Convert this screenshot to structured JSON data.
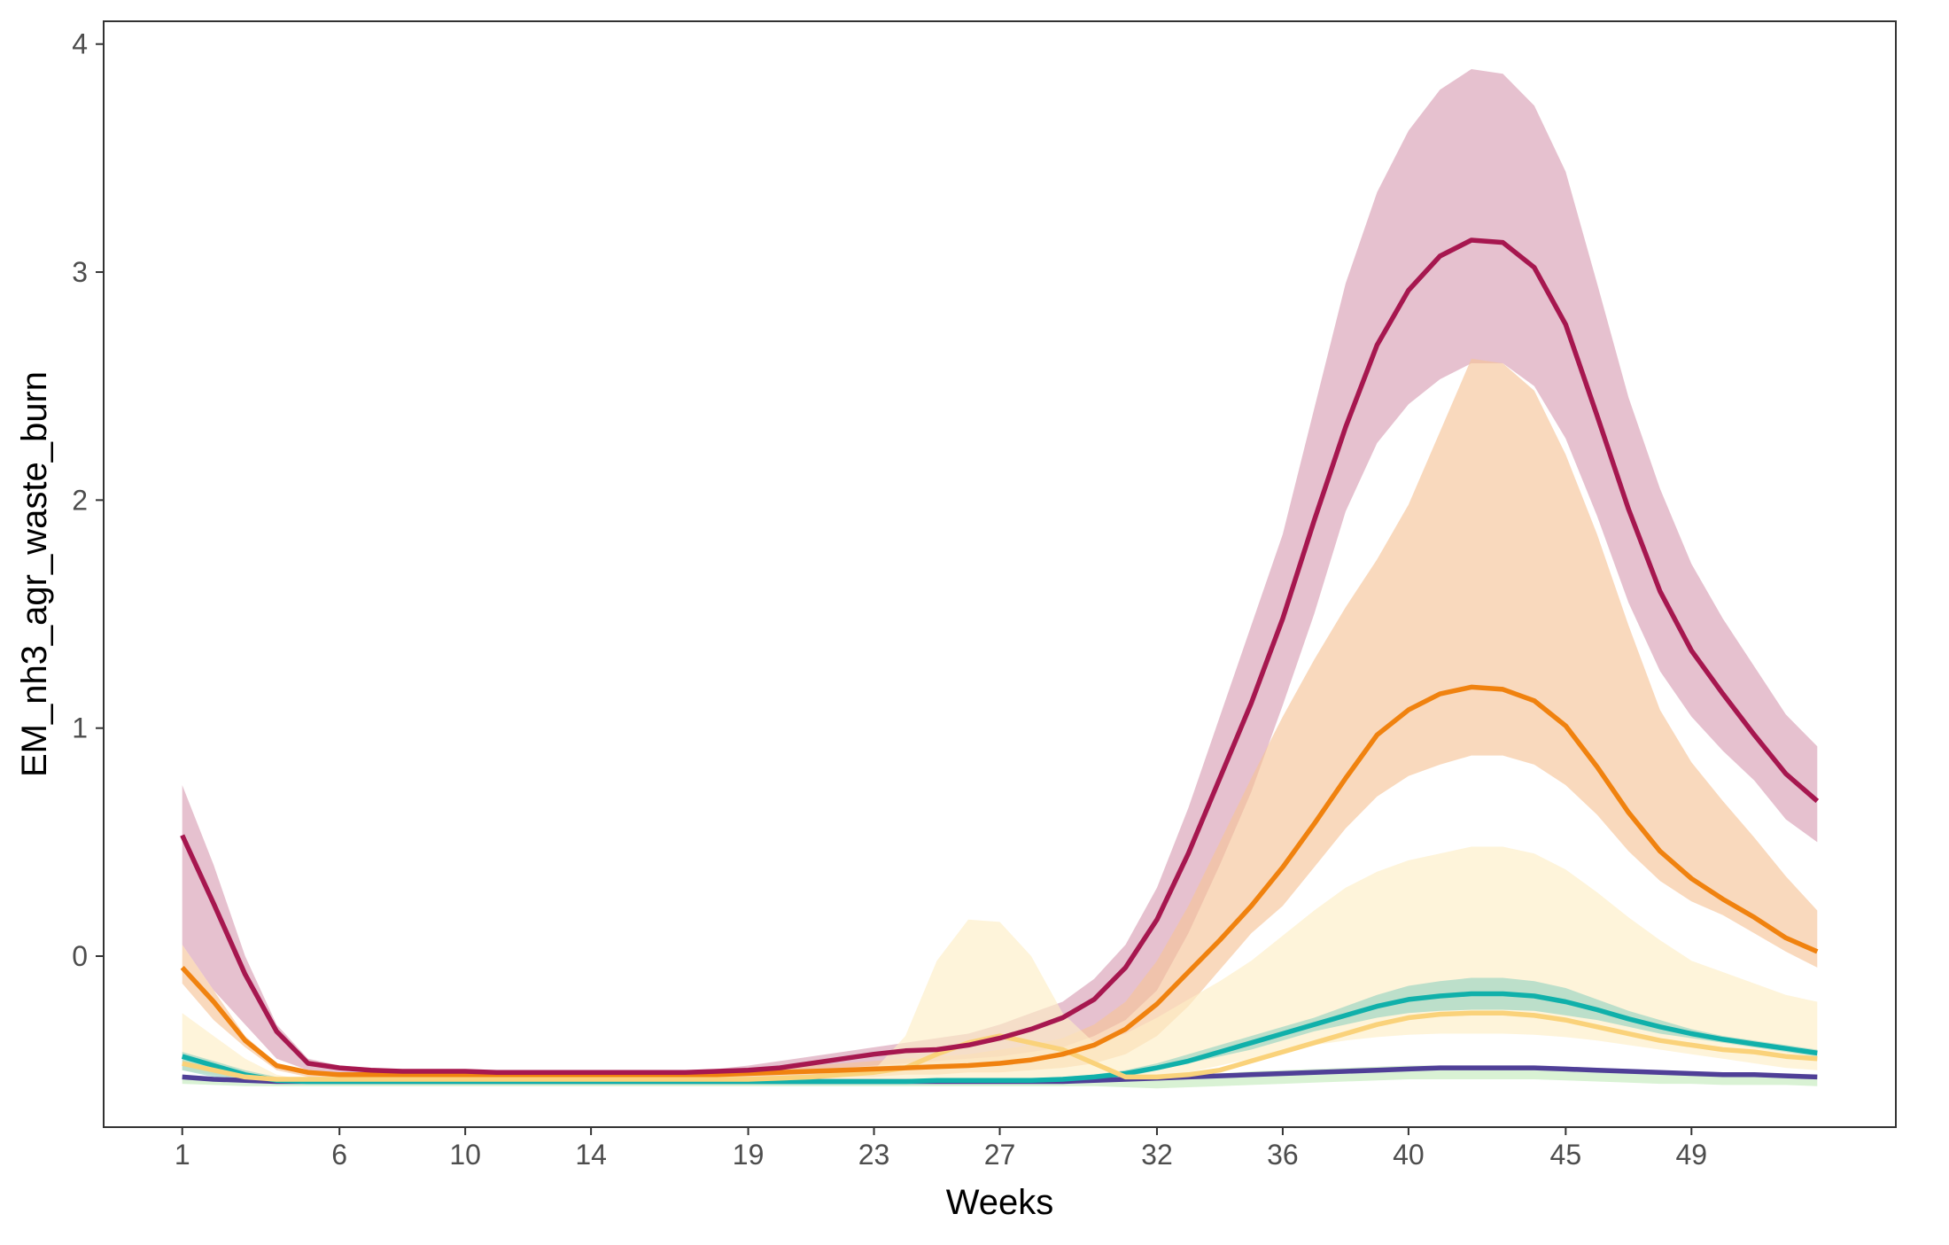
{
  "chart_data": {
    "type": "area",
    "title": "",
    "xlabel": "Weeks",
    "ylabel": "EM_nh3_agr_waste_burn",
    "xlim": [
      -1.5,
      55.5
    ],
    "ylim": [
      -0.75,
      4.1
    ],
    "x_ticks": [
      1,
      6,
      10,
      14,
      19,
      23,
      27,
      32,
      36,
      40,
      45,
      49
    ],
    "x_tick_labels": [
      "1",
      "6",
      "10",
      "14",
      "19",
      "23",
      "27",
      "32",
      "36",
      "40",
      "45",
      "49"
    ],
    "y_ticks": [
      0,
      1,
      2,
      3,
      4
    ],
    "y_tick_labels": [
      "0",
      "1",
      "2",
      "3",
      "4"
    ],
    "grid": false,
    "legend": "none",
    "x": [
      1,
      2,
      3,
      4,
      5,
      6,
      7,
      8,
      9,
      10,
      11,
      12,
      13,
      14,
      15,
      16,
      17,
      18,
      19,
      20,
      21,
      22,
      23,
      24,
      25,
      26,
      27,
      28,
      29,
      30,
      31,
      32,
      33,
      34,
      35,
      36,
      37,
      38,
      39,
      40,
      41,
      42,
      43,
      44,
      45,
      46,
      47,
      48,
      49,
      50,
      51,
      52,
      53
    ],
    "bands": [
      {
        "color": "#cd84a0",
        "opacity": 0.5,
        "lower": [
          0.05,
          -0.15,
          -0.3,
          -0.45,
          -0.5,
          -0.52,
          -0.525,
          -0.53,
          -0.53,
          -0.53,
          -0.53,
          -0.53,
          -0.53,
          -0.53,
          -0.53,
          -0.53,
          -0.53,
          -0.53,
          -0.52,
          -0.51,
          -0.5,
          -0.49,
          -0.48,
          -0.47,
          -0.46,
          -0.45,
          -0.44,
          -0.42,
          -0.4,
          -0.35,
          -0.28,
          -0.15,
          0.1,
          0.4,
          0.72,
          1.1,
          1.5,
          1.95,
          2.25,
          2.42,
          2.53,
          2.6,
          2.6,
          2.5,
          2.27,
          1.93,
          1.55,
          1.25,
          1.05,
          0.9,
          0.77,
          0.6,
          0.5
        ],
        "upper": [
          0.75,
          0.4,
          0.0,
          -0.3,
          -0.45,
          -0.48,
          -0.49,
          -0.5,
          -0.5,
          -0.5,
          -0.5,
          -0.505,
          -0.505,
          -0.505,
          -0.505,
          -0.505,
          -0.5,
          -0.495,
          -0.48,
          -0.46,
          -0.44,
          -0.42,
          -0.4,
          -0.38,
          -0.36,
          -0.34,
          -0.3,
          -0.25,
          -0.2,
          -0.1,
          0.05,
          0.3,
          0.65,
          1.05,
          1.45,
          1.85,
          2.4,
          2.95,
          3.35,
          3.62,
          3.8,
          3.89,
          3.87,
          3.73,
          3.44,
          2.95,
          2.45,
          2.05,
          1.72,
          1.48,
          1.27,
          1.06,
          0.92
        ]
      },
      {
        "color": "#f6c49a",
        "opacity": 0.65,
        "lower": [
          -0.12,
          -0.28,
          -0.4,
          -0.5,
          -0.53,
          -0.54,
          -0.54,
          -0.54,
          -0.54,
          -0.54,
          -0.54,
          -0.54,
          -0.54,
          -0.54,
          -0.54,
          -0.54,
          -0.54,
          -0.54,
          -0.54,
          -0.53,
          -0.53,
          -0.53,
          -0.53,
          -0.52,
          -0.52,
          -0.51,
          -0.51,
          -0.5,
          -0.49,
          -0.47,
          -0.43,
          -0.35,
          -0.22,
          -0.06,
          0.1,
          0.22,
          0.39,
          0.56,
          0.7,
          0.79,
          0.84,
          0.88,
          0.88,
          0.84,
          0.75,
          0.62,
          0.46,
          0.33,
          0.24,
          0.18,
          0.1,
          0.02,
          -0.05
        ],
        "upper": [
          0.05,
          -0.15,
          -0.35,
          -0.47,
          -0.5,
          -0.51,
          -0.51,
          -0.51,
          -0.51,
          -0.51,
          -0.515,
          -0.515,
          -0.515,
          -0.515,
          -0.515,
          -0.515,
          -0.51,
          -0.51,
          -0.5,
          -0.49,
          -0.48,
          -0.47,
          -0.46,
          -0.45,
          -0.44,
          -0.43,
          -0.41,
          -0.39,
          -0.36,
          -0.3,
          -0.2,
          -0.02,
          0.22,
          0.5,
          0.78,
          1.05,
          1.3,
          1.53,
          1.74,
          1.98,
          2.3,
          2.62,
          2.6,
          2.48,
          2.2,
          1.85,
          1.45,
          1.08,
          0.85,
          0.68,
          0.52,
          0.35,
          0.2
        ]
      },
      {
        "color": "#fdeec6",
        "opacity": 0.65,
        "lower": [
          -0.5,
          -0.52,
          -0.54,
          -0.55,
          -0.555,
          -0.555,
          -0.555,
          -0.555,
          -0.555,
          -0.555,
          -0.555,
          -0.555,
          -0.555,
          -0.555,
          -0.555,
          -0.555,
          -0.555,
          -0.555,
          -0.555,
          -0.555,
          -0.555,
          -0.555,
          -0.555,
          -0.55,
          -0.55,
          -0.55,
          -0.55,
          -0.55,
          -0.55,
          -0.55,
          -0.54,
          -0.53,
          -0.51,
          -0.48,
          -0.45,
          -0.42,
          -0.39,
          -0.37,
          -0.355,
          -0.345,
          -0.34,
          -0.34,
          -0.34,
          -0.345,
          -0.355,
          -0.37,
          -0.39,
          -0.41,
          -0.43,
          -0.45,
          -0.47,
          -0.49,
          -0.5
        ],
        "upper": [
          -0.25,
          -0.35,
          -0.45,
          -0.52,
          -0.545,
          -0.55,
          -0.55,
          -0.55,
          -0.55,
          -0.55,
          -0.55,
          -0.55,
          -0.55,
          -0.55,
          -0.55,
          -0.55,
          -0.55,
          -0.55,
          -0.545,
          -0.54,
          -0.53,
          -0.52,
          -0.5,
          -0.35,
          -0.02,
          0.16,
          0.15,
          0.0,
          -0.25,
          -0.38,
          -0.34,
          -0.27,
          -0.19,
          -0.11,
          -0.02,
          0.09,
          0.2,
          0.3,
          0.37,
          0.42,
          0.45,
          0.48,
          0.48,
          0.45,
          0.38,
          0.28,
          0.17,
          0.07,
          -0.02,
          -0.07,
          -0.12,
          -0.17,
          -0.2
        ]
      },
      {
        "color": "#8fd0bf",
        "opacity": 0.6,
        "lower": [
          -0.5,
          -0.53,
          -0.545,
          -0.555,
          -0.555,
          -0.555,
          -0.555,
          -0.555,
          -0.555,
          -0.555,
          -0.555,
          -0.555,
          -0.555,
          -0.555,
          -0.555,
          -0.555,
          -0.555,
          -0.555,
          -0.555,
          -0.555,
          -0.555,
          -0.555,
          -0.555,
          -0.555,
          -0.555,
          -0.555,
          -0.555,
          -0.555,
          -0.55,
          -0.545,
          -0.53,
          -0.5,
          -0.47,
          -0.44,
          -0.41,
          -0.37,
          -0.33,
          -0.3,
          -0.27,
          -0.25,
          -0.24,
          -0.235,
          -0.235,
          -0.24,
          -0.26,
          -0.28,
          -0.31,
          -0.34,
          -0.36,
          -0.38,
          -0.4,
          -0.42,
          -0.44
        ],
        "upper": [
          -0.42,
          -0.46,
          -0.5,
          -0.53,
          -0.54,
          -0.545,
          -0.545,
          -0.545,
          -0.545,
          -0.545,
          -0.545,
          -0.545,
          -0.545,
          -0.545,
          -0.545,
          -0.545,
          -0.545,
          -0.545,
          -0.545,
          -0.545,
          -0.545,
          -0.545,
          -0.545,
          -0.545,
          -0.54,
          -0.54,
          -0.54,
          -0.535,
          -0.53,
          -0.52,
          -0.5,
          -0.47,
          -0.43,
          -0.39,
          -0.35,
          -0.31,
          -0.27,
          -0.22,
          -0.17,
          -0.13,
          -0.11,
          -0.095,
          -0.095,
          -0.11,
          -0.14,
          -0.19,
          -0.24,
          -0.28,
          -0.32,
          -0.35,
          -0.37,
          -0.39,
          -0.41
        ]
      },
      {
        "color": "#c9ecc2",
        "opacity": 0.7,
        "lower": [
          -0.56,
          -0.565,
          -0.57,
          -0.57,
          -0.57,
          -0.57,
          -0.57,
          -0.57,
          -0.57,
          -0.57,
          -0.57,
          -0.57,
          -0.57,
          -0.57,
          -0.57,
          -0.57,
          -0.57,
          -0.57,
          -0.57,
          -0.57,
          -0.57,
          -0.57,
          -0.57,
          -0.57,
          -0.57,
          -0.57,
          -0.57,
          -0.57,
          -0.57,
          -0.57,
          -0.575,
          -0.58,
          -0.575,
          -0.57,
          -0.565,
          -0.56,
          -0.555,
          -0.55,
          -0.545,
          -0.54,
          -0.54,
          -0.54,
          -0.54,
          -0.54,
          -0.545,
          -0.55,
          -0.555,
          -0.56,
          -0.56,
          -0.565,
          -0.565,
          -0.565,
          -0.57
        ],
        "upper": [
          -0.52,
          -0.53,
          -0.535,
          -0.54,
          -0.54,
          -0.54,
          -0.54,
          -0.54,
          -0.54,
          -0.54,
          -0.54,
          -0.54,
          -0.54,
          -0.54,
          -0.54,
          -0.54,
          -0.54,
          -0.54,
          -0.54,
          -0.54,
          -0.54,
          -0.54,
          -0.54,
          -0.54,
          -0.54,
          -0.54,
          -0.54,
          -0.54,
          -0.54,
          -0.535,
          -0.53,
          -0.525,
          -0.52,
          -0.515,
          -0.505,
          -0.5,
          -0.495,
          -0.49,
          -0.485,
          -0.48,
          -0.48,
          -0.48,
          -0.48,
          -0.48,
          -0.485,
          -0.49,
          -0.495,
          -0.5,
          -0.505,
          -0.51,
          -0.515,
          -0.52,
          -0.525
        ]
      }
    ],
    "series": [
      {
        "color": "#a6174f",
        "values": [
          0.53,
          0.23,
          -0.08,
          -0.33,
          -0.47,
          -0.49,
          -0.5,
          -0.505,
          -0.505,
          -0.505,
          -0.51,
          -0.51,
          -0.51,
          -0.51,
          -0.51,
          -0.51,
          -0.51,
          -0.505,
          -0.5,
          -0.49,
          -0.47,
          -0.45,
          -0.43,
          -0.415,
          -0.41,
          -0.39,
          -0.36,
          -0.32,
          -0.27,
          -0.19,
          -0.05,
          0.16,
          0.45,
          0.78,
          1.11,
          1.48,
          1.91,
          2.32,
          2.68,
          2.92,
          3.07,
          3.14,
          3.13,
          3.02,
          2.77,
          2.37,
          1.96,
          1.6,
          1.34,
          1.15,
          0.97,
          0.8,
          0.68
        ]
      },
      {
        "color": "#f0820f",
        "values": [
          -0.05,
          -0.2,
          -0.37,
          -0.48,
          -0.51,
          -0.52,
          -0.52,
          -0.52,
          -0.52,
          -0.52,
          -0.52,
          -0.52,
          -0.52,
          -0.52,
          -0.52,
          -0.52,
          -0.52,
          -0.52,
          -0.515,
          -0.51,
          -0.505,
          -0.5,
          -0.495,
          -0.49,
          -0.485,
          -0.48,
          -0.47,
          -0.455,
          -0.43,
          -0.39,
          -0.32,
          -0.21,
          -0.07,
          0.07,
          0.22,
          0.39,
          0.58,
          0.78,
          0.97,
          1.08,
          1.15,
          1.18,
          1.17,
          1.12,
          1.01,
          0.83,
          0.63,
          0.46,
          0.34,
          0.25,
          0.17,
          0.08,
          0.02
        ]
      },
      {
        "color": "#fad27a",
        "values": [
          -0.47,
          -0.5,
          -0.53,
          -0.54,
          -0.54,
          -0.54,
          -0.54,
          -0.54,
          -0.54,
          -0.54,
          -0.54,
          -0.54,
          -0.54,
          -0.54,
          -0.54,
          -0.54,
          -0.54,
          -0.54,
          -0.54,
          -0.535,
          -0.53,
          -0.52,
          -0.51,
          -0.49,
          -0.43,
          -0.38,
          -0.35,
          -0.38,
          -0.41,
          -0.47,
          -0.53,
          -0.53,
          -0.52,
          -0.5,
          -0.46,
          -0.42,
          -0.38,
          -0.34,
          -0.3,
          -0.27,
          -0.255,
          -0.25,
          -0.25,
          -0.26,
          -0.28,
          -0.31,
          -0.34,
          -0.37,
          -0.39,
          -0.41,
          -0.42,
          -0.44,
          -0.45
        ]
      },
      {
        "color": "#10b0aa",
        "values": [
          -0.44,
          -0.48,
          -0.52,
          -0.545,
          -0.55,
          -0.55,
          -0.55,
          -0.55,
          -0.55,
          -0.55,
          -0.55,
          -0.55,
          -0.55,
          -0.55,
          -0.55,
          -0.55,
          -0.55,
          -0.55,
          -0.55,
          -0.55,
          -0.55,
          -0.55,
          -0.55,
          -0.55,
          -0.545,
          -0.545,
          -0.545,
          -0.545,
          -0.54,
          -0.53,
          -0.515,
          -0.49,
          -0.46,
          -0.42,
          -0.38,
          -0.34,
          -0.3,
          -0.26,
          -0.22,
          -0.19,
          -0.175,
          -0.165,
          -0.165,
          -0.175,
          -0.2,
          -0.235,
          -0.275,
          -0.31,
          -0.34,
          -0.365,
          -0.385,
          -0.405,
          -0.425
        ]
      },
      {
        "color": "#4f3f97",
        "values": [
          -0.53,
          -0.54,
          -0.545,
          -0.55,
          -0.55,
          -0.55,
          -0.55,
          -0.55,
          -0.55,
          -0.55,
          -0.55,
          -0.55,
          -0.55,
          -0.55,
          -0.55,
          -0.55,
          -0.55,
          -0.55,
          -0.55,
          -0.55,
          -0.55,
          -0.55,
          -0.55,
          -0.55,
          -0.55,
          -0.55,
          -0.55,
          -0.55,
          -0.55,
          -0.545,
          -0.54,
          -0.535,
          -0.53,
          -0.525,
          -0.52,
          -0.515,
          -0.51,
          -0.505,
          -0.5,
          -0.495,
          -0.49,
          -0.49,
          -0.49,
          -0.49,
          -0.495,
          -0.5,
          -0.505,
          -0.51,
          -0.515,
          -0.52,
          -0.52,
          -0.525,
          -0.53
        ]
      }
    ]
  }
}
